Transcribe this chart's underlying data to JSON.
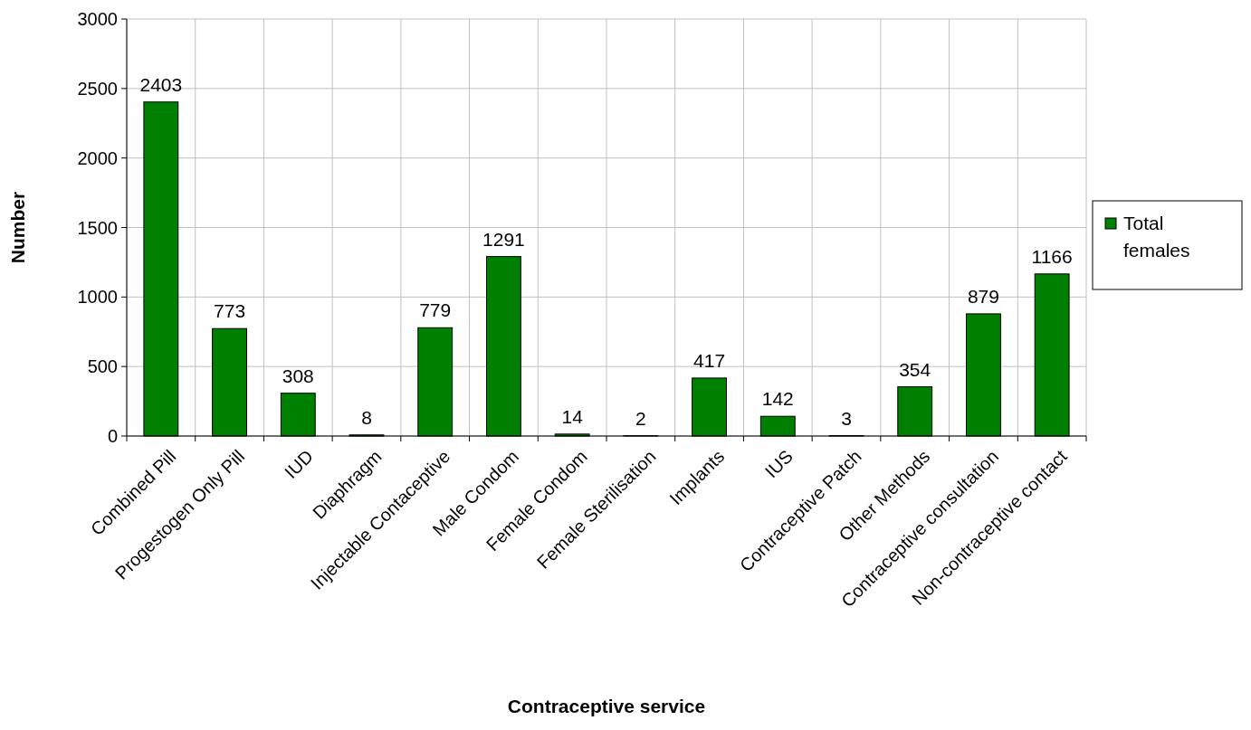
{
  "chart_data": {
    "type": "bar",
    "xlabel": "Contraceptive service",
    "ylabel": "Number",
    "categories": [
      "Combined Pill",
      "Progestogen Only Pill",
      "IUD",
      "Diaphragm",
      "Injectable Contaceptive",
      "Male Condom",
      "Female Condom",
      "Female Sterilisation",
      "Implants",
      "IUS",
      "Contraceptive Patch",
      "Other Methods",
      "Contraceptive consultation",
      "Non-contraceptive contact"
    ],
    "series": [
      {
        "name": "Total females",
        "color": "#008000",
        "values": [
          2403,
          773,
          308,
          8,
          779,
          1291,
          14,
          2,
          417,
          142,
          3,
          354,
          879,
          1166
        ]
      }
    ],
    "data_labels": true,
    "ylim": [
      0,
      3000
    ],
    "yticks": [
      0,
      500,
      1000,
      1500,
      2000,
      2500,
      3000
    ],
    "grid": true,
    "legend": "right"
  }
}
